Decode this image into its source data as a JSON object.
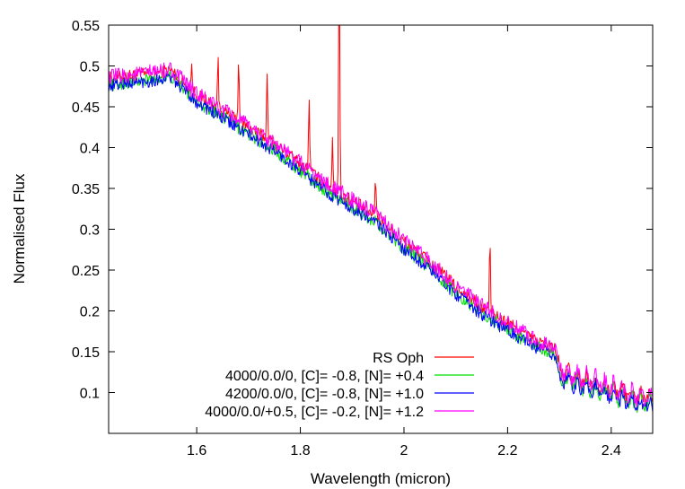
{
  "chart_data": {
    "type": "line",
    "title": "",
    "xlabel": "Wavelength (micron)",
    "ylabel": "Normalised Flux",
    "xlim": [
      1.43,
      2.48
    ],
    "ylim": [
      0.05,
      0.55
    ],
    "xticks": [
      1.6,
      1.8,
      2.0,
      2.2,
      2.4
    ],
    "xtick_labels": [
      "1.6",
      "1.8",
      "2",
      "2.2",
      "2.4"
    ],
    "yticks": [
      0.1,
      0.15,
      0.2,
      0.25,
      0.3,
      0.35,
      0.4,
      0.45,
      0.5,
      0.55
    ],
    "ytick_labels": [
      "0.1",
      "0.15",
      "0.2",
      "0.25",
      "0.3",
      "0.35",
      "0.4",
      "0.45",
      "0.5",
      "0.55"
    ],
    "grid": false,
    "legend_position": "bottom-right",
    "continuum": {
      "x": [
        1.43,
        1.5,
        1.55,
        1.6,
        1.65,
        1.7,
        1.75,
        1.8,
        1.85,
        1.9,
        1.95,
        2.0,
        2.05,
        2.1,
        2.15,
        2.2,
        2.25,
        2.29,
        2.3,
        2.35,
        2.4,
        2.45,
        2.48
      ],
      "y": [
        0.48,
        0.485,
        0.49,
        0.46,
        0.44,
        0.42,
        0.4,
        0.375,
        0.35,
        0.33,
        0.31,
        0.28,
        0.255,
        0.225,
        0.2,
        0.18,
        0.16,
        0.15,
        0.13,
        0.12,
        0.11,
        0.1,
        0.1
      ]
    },
    "series": [
      {
        "name": "RS Oph",
        "color": "#ff0000",
        "offset": 0.005,
        "noise": 0.008,
        "emission_lines": [
          {
            "x": 1.59,
            "height": 0.03
          },
          {
            "x": 1.641,
            "height": 0.06
          },
          {
            "x": 1.681,
            "height": 0.08
          },
          {
            "x": 1.736,
            "height": 0.08
          },
          {
            "x": 1.817,
            "height": 0.09
          },
          {
            "x": 1.862,
            "height": 0.06
          },
          {
            "x": 1.875,
            "height": 0.3
          },
          {
            "x": 1.945,
            "height": 0.05
          },
          {
            "x": 2.166,
            "height": 0.085
          }
        ]
      },
      {
        "name": "4000/0.0/0, [C]= -0.8, [N]= +0.4",
        "color": "#00e000",
        "offset": -0.003,
        "noise": 0.008,
        "emission_lines": []
      },
      {
        "name": "4200/0.0/0, [C]= -0.8, [N]= +1.0",
        "color": "#0000ff",
        "offset": -0.004,
        "noise": 0.008,
        "emission_lines": []
      },
      {
        "name": "4000/0.0/+0.5, [C]= -0.2, [N]= +1.2",
        "color": "#ff00ff",
        "offset": 0.006,
        "noise": 0.01,
        "emission_lines": []
      }
    ]
  }
}
